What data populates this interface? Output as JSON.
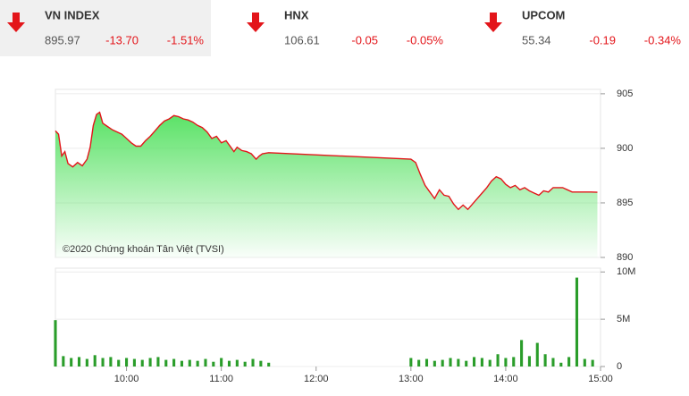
{
  "header": {
    "indices": [
      {
        "name": "VN INDEX",
        "value": "895.97",
        "change": "-13.70",
        "percent": "-1.51%"
      },
      {
        "name": "HNX",
        "value": "106.61",
        "change": "-0.05",
        "percent": "-0.05%"
      },
      {
        "name": "UPCOM",
        "value": "55.34",
        "change": "-0.19",
        "percent": "-0.34%"
      }
    ]
  },
  "chart_data": [
    {
      "type": "line",
      "annotation": "©2020 Chứng khoán Tân Việt (TVSI)",
      "color": "#e3151a",
      "fill": "#4fe05c",
      "xlim": [
        555,
        900
      ],
      "ylim": [
        890,
        905.4
      ],
      "yticks": [
        890,
        895,
        900,
        905
      ],
      "grid": true,
      "x": [
        555,
        557,
        559,
        561,
        563,
        566,
        569,
        572,
        575,
        577,
        579,
        581,
        583,
        585,
        588,
        591,
        594,
        597,
        600,
        603,
        606,
        609,
        612,
        615,
        618,
        621,
        624,
        627,
        630,
        633,
        636,
        639,
        642,
        645,
        648,
        651,
        654,
        657,
        660,
        663,
        666,
        668,
        670,
        673,
        676,
        679,
        682,
        684,
        686,
        690,
        780,
        783,
        786,
        789,
        792,
        795,
        798,
        801,
        804,
        807,
        810,
        813,
        816,
        819,
        822,
        825,
        828,
        831,
        834,
        837,
        840,
        843,
        846,
        849,
        852,
        855,
        858,
        861,
        864,
        867,
        870,
        873,
        876,
        879,
        882,
        888,
        894,
        898
      ],
      "values": [
        901.6,
        901.3,
        899.3,
        899.7,
        898.6,
        898.3,
        898.7,
        898.4,
        899.0,
        900.1,
        902.1,
        903.1,
        903.3,
        902.3,
        902.0,
        901.7,
        901.5,
        901.3,
        900.9,
        900.5,
        900.2,
        900.2,
        900.7,
        901.1,
        901.6,
        902.1,
        902.5,
        902.7,
        903.0,
        902.9,
        902.7,
        902.6,
        902.4,
        902.1,
        901.9,
        901.5,
        900.9,
        901.1,
        900.5,
        900.7,
        900.1,
        899.7,
        900.1,
        899.8,
        899.7,
        899.5,
        899.0,
        899.3,
        899.5,
        899.6,
        899.0,
        898.7,
        897.6,
        896.6,
        896.0,
        895.4,
        896.2,
        895.7,
        895.6,
        894.9,
        894.4,
        894.8,
        894.4,
        894.9,
        895.4,
        895.9,
        896.4,
        897.0,
        897.4,
        897.2,
        896.7,
        896.4,
        896.6,
        896.2,
        896.4,
        896.1,
        895.9,
        895.7,
        896.1,
        896.0,
        896.4,
        896.4,
        896.4,
        896.2,
        896.0,
        896.0,
        896.0,
        895.97
      ]
    },
    {
      "type": "bar",
      "color": "#2a9d2a",
      "xlim": [
        555,
        900
      ],
      "ylim": [
        0,
        10400000
      ],
      "yticks": [
        {
          "value": 0,
          "label": "0"
        },
        {
          "value": 5000000,
          "label": "5M"
        },
        {
          "value": 10000000,
          "label": "10M"
        }
      ],
      "xticks": [
        {
          "value": 600,
          "label": "10:00"
        },
        {
          "value": 660,
          "label": "11:00"
        },
        {
          "value": 720,
          "label": "12:00"
        },
        {
          "value": 780,
          "label": "13:00"
        },
        {
          "value": 840,
          "label": "14:00"
        },
        {
          "value": 900,
          "label": "15:00"
        }
      ],
      "x": [
        555,
        560,
        565,
        570,
        575,
        580,
        585,
        590,
        595,
        600,
        605,
        610,
        615,
        620,
        625,
        630,
        635,
        640,
        645,
        650,
        655,
        660,
        665,
        670,
        675,
        680,
        685,
        690,
        780,
        785,
        790,
        795,
        800,
        805,
        810,
        815,
        820,
        825,
        830,
        835,
        840,
        845,
        850,
        855,
        860,
        865,
        870,
        875,
        880,
        885,
        890,
        895
      ],
      "values": [
        4900000,
        1100000,
        900000,
        1000000,
        800000,
        1200000,
        900000,
        1000000,
        700000,
        900000,
        800000,
        700000,
        900000,
        1000000,
        700000,
        800000,
        600000,
        700000,
        600000,
        800000,
        500000,
        900000,
        600000,
        700000,
        500000,
        800000,
        600000,
        400000,
        900000,
        700000,
        800000,
        600000,
        700000,
        900000,
        800000,
        600000,
        1000000,
        900000,
        700000,
        1300000,
        900000,
        1000000,
        2800000,
        1100000,
        2500000,
        1300000,
        900000,
        400000,
        1000000,
        9400000,
        800000,
        700000
      ]
    }
  ]
}
